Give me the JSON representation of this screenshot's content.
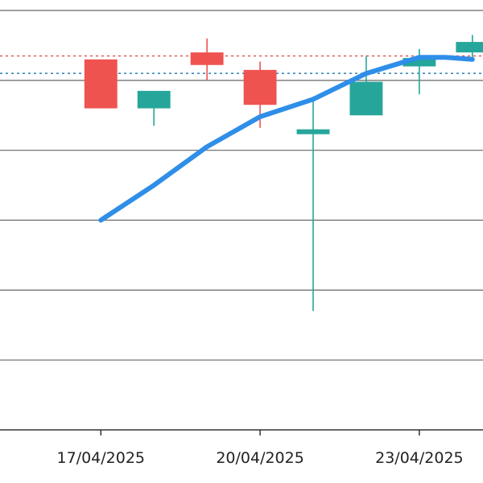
{
  "chart_data": {
    "type": "candlestick",
    "grid": true,
    "x_ticks": [
      {
        "label": "17/04/2025",
        "day": 17
      },
      {
        "label": "20/04/2025",
        "day": 20
      },
      {
        "label": "23/04/2025",
        "day": 23
      }
    ],
    "candles": [
      {
        "day": 17.0,
        "open": 10.3,
        "close": 9.6,
        "high": 10.3,
        "low": 9.6,
        "direction": "down"
      },
      {
        "day": 18.0,
        "open": 9.6,
        "close": 9.85,
        "high": 9.85,
        "low": 9.35,
        "direction": "up"
      },
      {
        "day": 19.0,
        "open": 10.4,
        "close": 10.22,
        "high": 10.6,
        "low": 10.0,
        "direction": "down"
      },
      {
        "day": 20.0,
        "open": 10.15,
        "close": 9.65,
        "high": 10.27,
        "low": 9.32,
        "direction": "down"
      },
      {
        "day": 21.0,
        "open": 9.23,
        "close": 9.3,
        "high": 9.7,
        "low": 6.7,
        "direction": "up"
      },
      {
        "day": 22.0,
        "open": 9.5,
        "close": 9.98,
        "high": 10.35,
        "low": 9.5,
        "direction": "up"
      },
      {
        "day": 23.0,
        "open": 10.2,
        "close": 10.32,
        "high": 10.45,
        "low": 9.8,
        "direction": "up"
      },
      {
        "day": 24.0,
        "open": 10.4,
        "close": 10.55,
        "high": 10.65,
        "low": 10.3,
        "direction": "up"
      }
    ],
    "trend_line": [
      {
        "day": 17.0,
        "value": 8.0
      },
      {
        "day": 18.0,
        "value": 8.5
      },
      {
        "day": 19.0,
        "value": 9.05
      },
      {
        "day": 20.0,
        "value": 9.48
      },
      {
        "day": 21.0,
        "value": 9.73
      },
      {
        "day": 22.0,
        "value": 10.1
      },
      {
        "day": 23.0,
        "value": 10.33
      },
      {
        "day": 23.5,
        "value": 10.33
      },
      {
        "day": 24.0,
        "value": 10.3
      }
    ],
    "reference_lines": [
      {
        "value": 10.35,
        "color": "#e05555",
        "style": "dotted"
      },
      {
        "value": 10.1,
        "color": "#2c7fb8",
        "style": "dotted"
      }
    ],
    "colors": {
      "up": "#26a69a",
      "down": "#ef5350",
      "trend": "#2f8ee8",
      "grid": "#666666"
    },
    "x_view": [
      15.1,
      24.2
    ],
    "y_view": [
      5.0,
      11.15
    ]
  }
}
